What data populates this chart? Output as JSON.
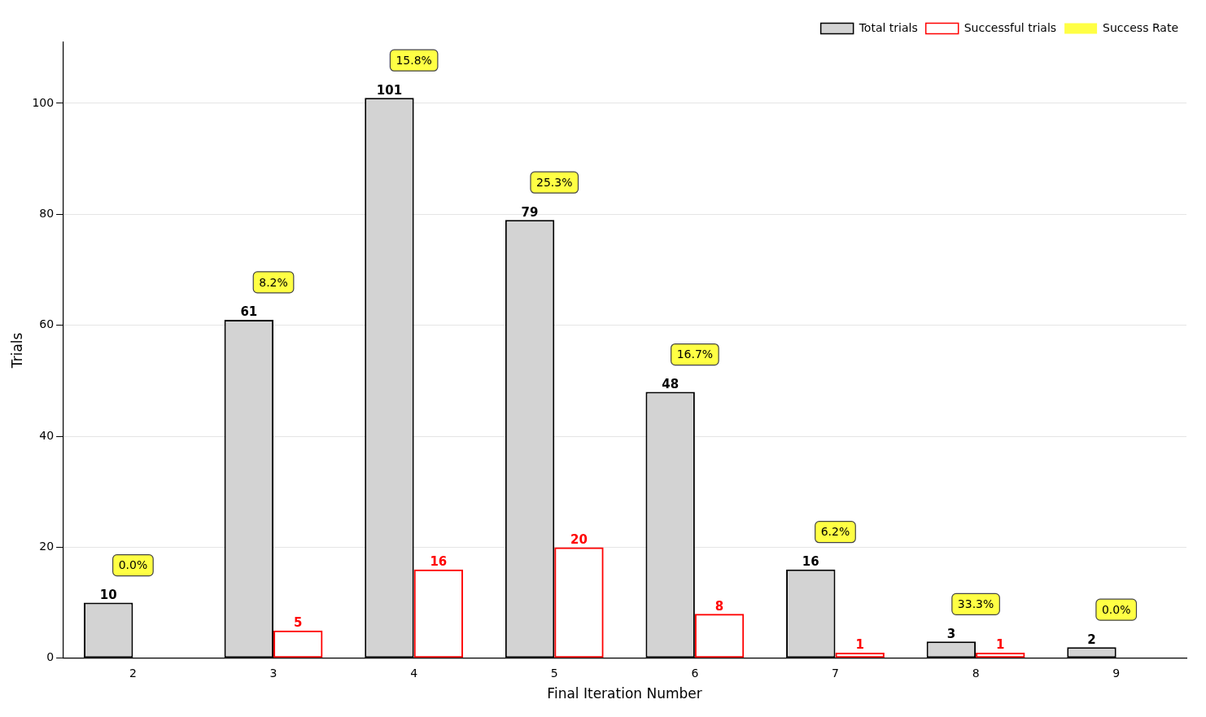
{
  "chart_data": {
    "type": "bar",
    "xlabel": "Final Iteration Number",
    "ylabel": "Trials",
    "categories": [
      "2",
      "3",
      "4",
      "5",
      "6",
      "7",
      "8",
      "9"
    ],
    "series": [
      {
        "name": "Total trials",
        "color": "#d3d3d3",
        "values": [
          10,
          61,
          101,
          79,
          48,
          16,
          3,
          2
        ],
        "value_labels": [
          "10",
          "61",
          "101",
          "79",
          "48",
          "16",
          "3",
          "2"
        ]
      },
      {
        "name": "Successful trials",
        "color": "#ff0000",
        "values": [
          0,
          5,
          16,
          20,
          8,
          1,
          1,
          0
        ],
        "value_labels": [
          null,
          "5",
          "16",
          "20",
          "8",
          "1",
          "1",
          null
        ]
      },
      {
        "name": "Success Rate",
        "type": "other",
        "color": "#ffff44",
        "values": [
          null,
          null,
          null,
          null,
          null,
          null,
          null,
          null
        ]
      }
    ],
    "annotations": [
      "0.0%",
      "8.2%",
      "15.8%",
      "25.3%",
      "16.7%",
      "6.2%",
      "33.3%",
      "0.0%"
    ],
    "ylim": [
      0,
      111
    ],
    "yticks": [
      0,
      20,
      40,
      60,
      80,
      100
    ],
    "grid": "y",
    "legend": "top right"
  }
}
